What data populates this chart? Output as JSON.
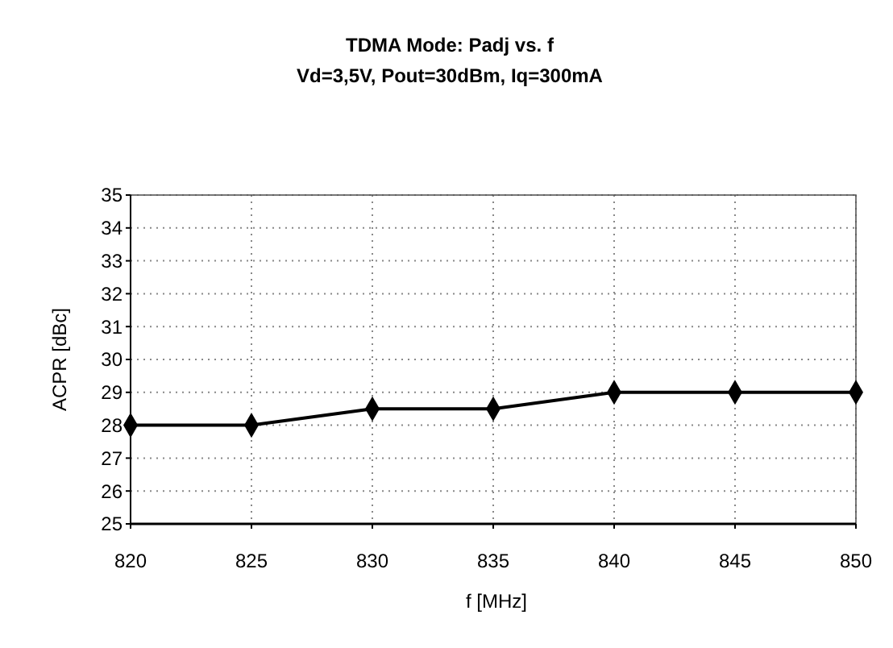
{
  "chart_data": {
    "type": "line",
    "title": "TDMA Mode: Padj vs. f",
    "subtitle": "Vd=3,5V, Pout=30dBm, Iq=300mA",
    "xlabel": "f [MHz]",
    "ylabel": "ACPR [dBc]",
    "x": [
      820,
      825,
      830,
      835,
      840,
      845,
      850
    ],
    "series": [
      {
        "color": "#000000",
        "values": [
          28,
          28,
          28.5,
          28.5,
          29,
          29,
          29
        ]
      }
    ],
    "xlim": [
      820,
      850
    ],
    "xticks": [
      820,
      825,
      830,
      835,
      840,
      845,
      850
    ],
    "ylim": [
      25,
      35
    ],
    "yticks": [
      25,
      26,
      27,
      28,
      29,
      30,
      31,
      32,
      33,
      34,
      35
    ],
    "grid": true,
    "marker": "diamond",
    "line_style": "solid"
  }
}
